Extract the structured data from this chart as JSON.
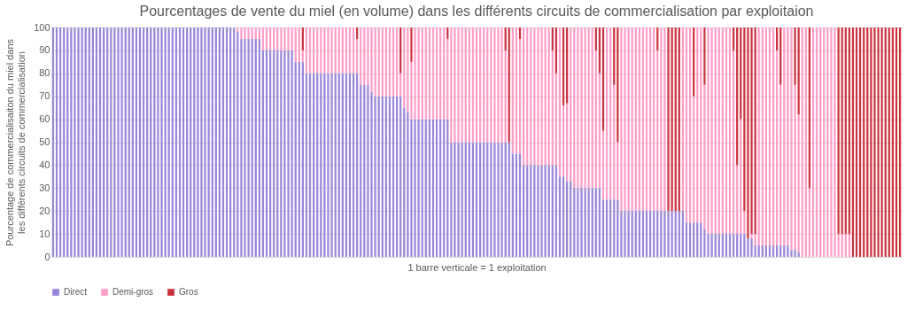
{
  "chart_data": {
    "type": "bar",
    "stacked": true,
    "title": "Pourcentages de vente du miel (en volume) dans les différents circuits de commercialisation par exploitaion",
    "xlabel": "1 barre verticale = 1 exploitation",
    "ylabel": "Pourcentage de commercialisaiton du miel dans les différents circuits de commercialisation",
    "categories": [
      null,
      null,
      null,
      null,
      null,
      null,
      null,
      null,
      null,
      null,
      null,
      null,
      null,
      null,
      null,
      null,
      null,
      null,
      null,
      null,
      null,
      null,
      null,
      null,
      null,
      null,
      null,
      null,
      null,
      null,
      null,
      null,
      null,
      null,
      null,
      null,
      null,
      null,
      null,
      null,
      null,
      null,
      null,
      null,
      null,
      null,
      null,
      null,
      null,
      null,
      null,
      null,
      null,
      null,
      null,
      null,
      null,
      null,
      null,
      null,
      null,
      null,
      null,
      null,
      null,
      null,
      null,
      null,
      null,
      null,
      null,
      null,
      null,
      null,
      null,
      null,
      null,
      null,
      null,
      null,
      null,
      null,
      null,
      null,
      null,
      null,
      null,
      null,
      null,
      null,
      null,
      null,
      null,
      null,
      null,
      null,
      null,
      null,
      null,
      null,
      null,
      null,
      null,
      null,
      null,
      null,
      null,
      null,
      null,
      null,
      null,
      null,
      null,
      null,
      null,
      null,
      null,
      null,
      null,
      null,
      null,
      null,
      null,
      null,
      null,
      null,
      null,
      null,
      null,
      null,
      null,
      null,
      null,
      null,
      null,
      null,
      null,
      null,
      null,
      null,
      null,
      null,
      null,
      null,
      null,
      null,
      null,
      null,
      null,
      null,
      null,
      null,
      null,
      null,
      null,
      null,
      null,
      null,
      null,
      null,
      null,
      null,
      null,
      null,
      null,
      null,
      null,
      null,
      null,
      null,
      null,
      null,
      null,
      null,
      null,
      null,
      null,
      null,
      null,
      null,
      null,
      null,
      null,
      null,
      null,
      null,
      null,
      null,
      null,
      null,
      null,
      null,
      null,
      null,
      null,
      null,
      null,
      null,
      null,
      null,
      null,
      null,
      null,
      null,
      null,
      null,
      null,
      null,
      null,
      null,
      null,
      null,
      null,
      null,
      null,
      null,
      null,
      null,
      null,
      null,
      null,
      null,
      null,
      null,
      null,
      null,
      null,
      null,
      null,
      null,
      null,
      null,
      null,
      null,
      null
    ],
    "series": [
      {
        "name": "Direct",
        "color": "#9a86d8",
        "values": [
          100,
          100,
          100,
          100,
          100,
          100,
          100,
          100,
          100,
          100,
          100,
          100,
          100,
          100,
          100,
          100,
          100,
          100,
          100,
          100,
          100,
          100,
          100,
          100,
          100,
          100,
          100,
          100,
          100,
          100,
          100,
          100,
          100,
          100,
          100,
          100,
          100,
          100,
          100,
          100,
          100,
          100,
          100,
          100,
          100,
          100,
          100,
          100,
          100,
          100,
          100,
          98,
          95,
          95,
          95,
          95,
          95,
          95,
          90,
          90,
          90,
          90,
          90,
          90,
          90,
          90,
          90,
          85,
          85,
          85,
          80,
          80,
          80,
          80,
          80,
          80,
          80,
          80,
          80,
          80,
          80,
          80,
          80,
          80,
          80,
          75,
          75,
          75,
          72,
          70,
          70,
          70,
          70,
          70,
          70,
          70,
          70,
          65,
          63,
          60,
          60,
          60,
          60,
          60,
          60,
          60,
          60,
          60,
          60,
          60,
          50,
          50,
          50,
          50,
          50,
          50,
          50,
          50,
          50,
          50,
          50,
          50,
          50,
          50,
          50,
          50,
          50,
          45,
          45,
          45,
          40,
          40,
          40,
          40,
          40,
          40,
          40,
          40,
          40,
          40,
          35,
          35,
          33,
          33,
          30,
          30,
          30,
          30,
          30,
          30,
          30,
          30,
          25,
          25,
          25,
          25,
          25,
          20,
          20,
          20,
          20,
          20,
          20,
          20,
          20,
          20,
          20,
          20,
          20,
          20,
          20,
          20,
          20,
          20,
          20,
          15,
          15,
          15,
          15,
          15,
          12,
          10,
          10,
          10,
          10,
          10,
          10,
          10,
          10,
          10,
          10,
          10,
          8,
          8,
          5,
          5,
          5,
          5,
          5,
          5,
          5,
          5,
          5,
          5,
          3,
          3,
          2,
          0,
          0,
          0,
          0,
          0,
          0,
          0,
          0,
          0,
          0,
          0,
          0,
          0,
          0,
          0,
          0,
          0,
          0,
          0,
          0,
          0,
          0,
          0,
          0,
          0,
          0,
          0,
          0
        ]
      },
      {
        "name": "Demi-gros",
        "color": "#ff9ec8",
        "values": [
          0,
          0,
          0,
          0,
          0,
          0,
          0,
          0,
          0,
          0,
          0,
          0,
          0,
          0,
          0,
          0,
          0,
          0,
          0,
          0,
          0,
          0,
          0,
          0,
          0,
          0,
          0,
          0,
          0,
          0,
          0,
          0,
          0,
          0,
          0,
          0,
          0,
          0,
          0,
          0,
          0,
          0,
          0,
          0,
          0,
          0,
          0,
          0,
          0,
          0,
          0,
          2,
          5,
          5,
          5,
          5,
          5,
          5,
          10,
          10,
          10,
          10,
          10,
          10,
          10,
          10,
          10,
          15,
          15,
          5,
          20,
          20,
          20,
          20,
          20,
          20,
          20,
          20,
          20,
          20,
          20,
          20,
          20,
          20,
          15,
          25,
          25,
          25,
          28,
          30,
          30,
          30,
          30,
          30,
          30,
          30,
          10,
          35,
          37,
          25,
          40,
          40,
          40,
          40,
          40,
          40,
          40,
          40,
          40,
          35,
          50,
          50,
          50,
          50,
          50,
          50,
          50,
          50,
          50,
          50,
          50,
          50,
          50,
          50,
          50,
          40,
          0,
          55,
          55,
          50,
          60,
          60,
          60,
          60,
          60,
          60,
          60,
          60,
          50,
          40,
          65,
          31,
          34,
          67,
          70,
          70,
          70,
          70,
          70,
          70,
          60,
          50,
          30,
          75,
          75,
          50,
          25,
          80,
          80,
          80,
          80,
          80,
          80,
          80,
          80,
          80,
          80,
          70,
          80,
          80,
          0,
          0,
          0,
          0,
          80,
          85,
          85,
          55,
          85,
          85,
          63,
          90,
          90,
          90,
          90,
          90,
          90,
          90,
          80,
          30,
          50,
          10,
          0,
          2,
          5,
          95,
          95,
          95,
          95,
          95,
          85,
          70,
          95,
          95,
          97,
          72,
          60,
          100,
          100,
          30,
          100,
          100,
          100,
          100,
          100,
          100,
          100,
          10,
          10,
          10,
          10,
          0,
          0,
          0,
          0,
          0,
          0,
          0,
          0,
          0,
          0,
          0,
          0,
          0,
          0
        ]
      },
      {
        "name": "Gros",
        "color": "#cc3340",
        "values": [
          0,
          0,
          0,
          0,
          0,
          0,
          0,
          0,
          0,
          0,
          0,
          0,
          0,
          0,
          0,
          0,
          0,
          0,
          0,
          0,
          0,
          0,
          0,
          0,
          0,
          0,
          0,
          0,
          0,
          0,
          0,
          0,
          0,
          0,
          0,
          0,
          0,
          0,
          0,
          0,
          0,
          0,
          0,
          0,
          0,
          0,
          0,
          0,
          0,
          0,
          0,
          0,
          0,
          0,
          0,
          0,
          0,
          0,
          0,
          0,
          0,
          0,
          0,
          0,
          0,
          0,
          0,
          0,
          0,
          10,
          0,
          0,
          0,
          0,
          0,
          0,
          0,
          0,
          0,
          0,
          0,
          0,
          0,
          0,
          5,
          0,
          0,
          0,
          0,
          0,
          0,
          0,
          0,
          0,
          0,
          0,
          20,
          0,
          0,
          15,
          0,
          0,
          0,
          0,
          0,
          0,
          0,
          0,
          0,
          5,
          0,
          0,
          0,
          0,
          0,
          0,
          0,
          0,
          0,
          0,
          0,
          0,
          0,
          0,
          0,
          10,
          50,
          0,
          0,
          5,
          0,
          0,
          0,
          0,
          0,
          0,
          0,
          0,
          10,
          20,
          0,
          34,
          33,
          0,
          0,
          0,
          0,
          0,
          0,
          0,
          10,
          20,
          45,
          0,
          0,
          25,
          50,
          0,
          0,
          0,
          0,
          0,
          0,
          0,
          0,
          0,
          0,
          10,
          0,
          0,
          80,
          80,
          80,
          80,
          0,
          0,
          0,
          30,
          0,
          0,
          25,
          0,
          0,
          0,
          0,
          0,
          0,
          0,
          10,
          60,
          40,
          80,
          92,
          90,
          90,
          0,
          0,
          0,
          0,
          0,
          10,
          25,
          0,
          0,
          0,
          25,
          38,
          0,
          0,
          70,
          0,
          0,
          0,
          0,
          0,
          0,
          0,
          90,
          90,
          90,
          90,
          100,
          100,
          100,
          100,
          100,
          100,
          100,
          100,
          100,
          100,
          100,
          100,
          100,
          100
        ]
      }
    ],
    "ylim": [
      0,
      100
    ],
    "yticks": [
      0,
      10,
      20,
      30,
      40,
      50,
      60,
      70,
      80,
      90,
      100
    ],
    "grid": "y",
    "legend": "bottom",
    "tick_labels": "y"
  }
}
